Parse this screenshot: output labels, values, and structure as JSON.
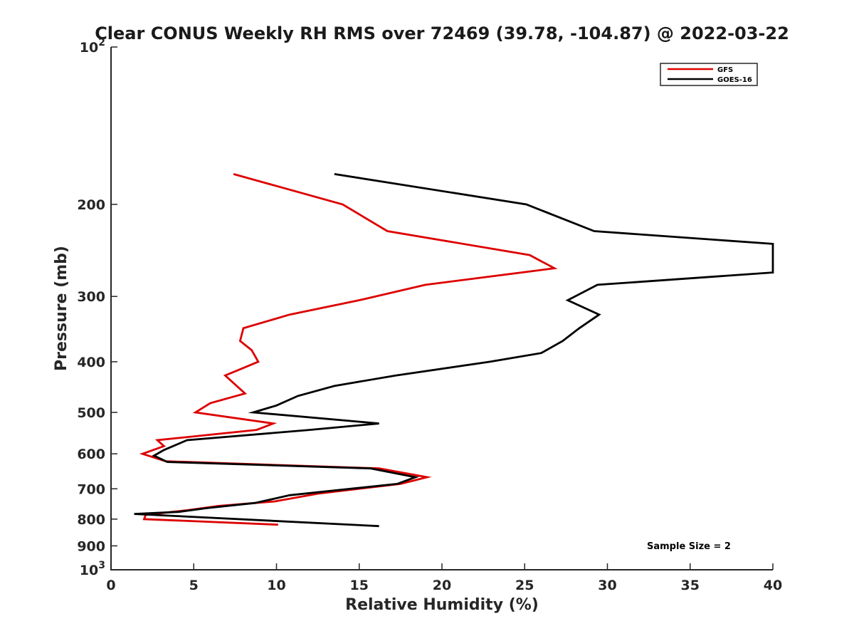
{
  "chart_data": {
    "type": "line",
    "title": "Clear CONUS Weekly RH RMS over 72469 (39.78, -104.87) @ 2022-03-22",
    "xlabel": "Relative Humidity (%)",
    "ylabel": "Pressure (mb)",
    "xlim": [
      0,
      40
    ],
    "ylim": [
      100,
      1000
    ],
    "yscale": "log",
    "y_reversed": true,
    "grid": false,
    "legend_placement": "top-right",
    "x_ticks": [
      "0",
      "5",
      "10",
      "15",
      "20",
      "25",
      "30",
      "35",
      "40"
    ],
    "y_ticks": [
      {
        "value": 100,
        "base": "10",
        "exp": "2"
      },
      {
        "value": 200,
        "label": "200"
      },
      {
        "value": 300,
        "label": "300"
      },
      {
        "value": 400,
        "label": "400"
      },
      {
        "value": 500,
        "label": "500"
      },
      {
        "value": 600,
        "label": "600"
      },
      {
        "value": 700,
        "label": "700"
      },
      {
        "value": 800,
        "label": "800"
      },
      {
        "value": 900,
        "label": "900"
      },
      {
        "value": 1000,
        "base": "10",
        "exp": "3"
      }
    ],
    "annotation": "Sample Size = 2",
    "series": [
      {
        "name": "GFS",
        "color": "#dd0000",
        "points": [
          {
            "x": 7.4,
            "p": 175
          },
          {
            "x": 14.0,
            "p": 200
          },
          {
            "x": 16.7,
            "p": 225
          },
          {
            "x": 25.3,
            "p": 250
          },
          {
            "x": 26.8,
            "p": 265
          },
          {
            "x": 19.0,
            "p": 285
          },
          {
            "x": 15.0,
            "p": 305
          },
          {
            "x": 10.8,
            "p": 325
          },
          {
            "x": 8.0,
            "p": 345
          },
          {
            "x": 7.8,
            "p": 365
          },
          {
            "x": 8.5,
            "p": 380
          },
          {
            "x": 8.9,
            "p": 400
          },
          {
            "x": 6.9,
            "p": 425
          },
          {
            "x": 8.1,
            "p": 460
          },
          {
            "x": 6.0,
            "p": 480
          },
          {
            "x": 5.1,
            "p": 500
          },
          {
            "x": 9.8,
            "p": 525
          },
          {
            "x": 8.8,
            "p": 540
          },
          {
            "x": 2.8,
            "p": 565
          },
          {
            "x": 3.2,
            "p": 580
          },
          {
            "x": 1.9,
            "p": 600
          },
          {
            "x": 3.3,
            "p": 620
          },
          {
            "x": 16.2,
            "p": 640
          },
          {
            "x": 19.1,
            "p": 665
          },
          {
            "x": 17.5,
            "p": 685
          },
          {
            "x": 12.5,
            "p": 715
          },
          {
            "x": 9.9,
            "p": 740
          },
          {
            "x": 6.5,
            "p": 755
          },
          {
            "x": 4.5,
            "p": 770
          },
          {
            "x": 2.1,
            "p": 785
          },
          {
            "x": 2.0,
            "p": 800
          },
          {
            "x": 10.1,
            "p": 820
          }
        ]
      },
      {
        "name": "GOES-16",
        "color": "#000000",
        "points": [
          {
            "x": 13.5,
            "p": 175
          },
          {
            "x": 25.1,
            "p": 200
          },
          {
            "x": 29.2,
            "p": 225
          },
          {
            "x": 40.0,
            "p": 238
          },
          {
            "x": 40.0,
            "p": 270
          },
          {
            "x": 29.4,
            "p": 285
          },
          {
            "x": 27.6,
            "p": 305
          },
          {
            "x": 29.5,
            "p": 325
          },
          {
            "x": 28.3,
            "p": 345
          },
          {
            "x": 27.3,
            "p": 365
          },
          {
            "x": 26.0,
            "p": 385
          },
          {
            "x": 22.9,
            "p": 400
          },
          {
            "x": 17.2,
            "p": 425
          },
          {
            "x": 13.5,
            "p": 445
          },
          {
            "x": 11.3,
            "p": 465
          },
          {
            "x": 10.0,
            "p": 485
          },
          {
            "x": 8.6,
            "p": 500
          },
          {
            "x": 16.2,
            "p": 525
          },
          {
            "x": 12.0,
            "p": 540
          },
          {
            "x": 4.6,
            "p": 565
          },
          {
            "x": 3.2,
            "p": 590
          },
          {
            "x": 2.6,
            "p": 605
          },
          {
            "x": 3.4,
            "p": 622
          },
          {
            "x": 15.7,
            "p": 640
          },
          {
            "x": 18.4,
            "p": 665
          },
          {
            "x": 17.3,
            "p": 685
          },
          {
            "x": 10.8,
            "p": 720
          },
          {
            "x": 8.7,
            "p": 745
          },
          {
            "x": 5.8,
            "p": 762
          },
          {
            "x": 4.1,
            "p": 775
          },
          {
            "x": 1.4,
            "p": 782
          },
          {
            "x": 16.2,
            "p": 825
          }
        ]
      }
    ]
  }
}
